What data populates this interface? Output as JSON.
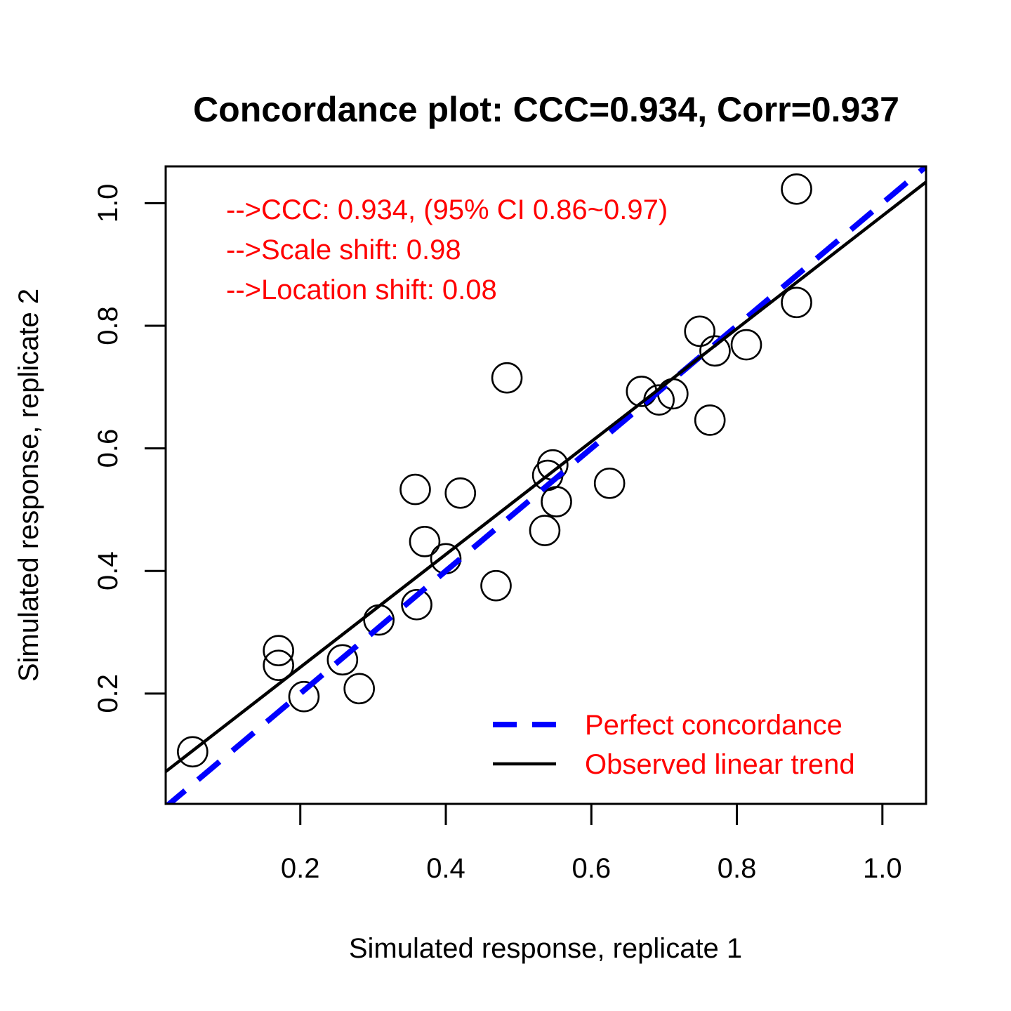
{
  "chart_data": {
    "type": "scatter",
    "title": "Concordance plot: CCC=0.934, Corr=0.937",
    "xlabel": "Simulated response, replicate 1",
    "ylabel": "Simulated response, replicate 2",
    "xlim": [
      0.015,
      1.06
    ],
    "ylim": [
      0.02,
      1.06
    ],
    "x_ticks": [
      0.2,
      0.4,
      0.6,
      0.8,
      1.0
    ],
    "x_tick_labels": [
      "0.2",
      "0.4",
      "0.6",
      "0.8",
      "1.0"
    ],
    "y_ticks": [
      0.2,
      0.4,
      0.6,
      0.8,
      1.0
    ],
    "y_tick_labels": [
      "0.2",
      "0.4",
      "0.6",
      "0.8",
      "1.0"
    ],
    "grid": false,
    "points": [
      {
        "x": 0.052,
        "y": 0.105
      },
      {
        "x": 0.17,
        "y": 0.27
      },
      {
        "x": 0.17,
        "y": 0.246
      },
      {
        "x": 0.205,
        "y": 0.195
      },
      {
        "x": 0.258,
        "y": 0.255
      },
      {
        "x": 0.281,
        "y": 0.208
      },
      {
        "x": 0.308,
        "y": 0.32
      },
      {
        "x": 0.358,
        "y": 0.533
      },
      {
        "x": 0.36,
        "y": 0.345
      },
      {
        "x": 0.371,
        "y": 0.448
      },
      {
        "x": 0.4,
        "y": 0.42
      },
      {
        "x": 0.42,
        "y": 0.527
      },
      {
        "x": 0.469,
        "y": 0.376
      },
      {
        "x": 0.484,
        "y": 0.715
      },
      {
        "x": 0.536,
        "y": 0.466
      },
      {
        "x": 0.54,
        "y": 0.556
      },
      {
        "x": 0.547,
        "y": 0.573
      },
      {
        "x": 0.552,
        "y": 0.513
      },
      {
        "x": 0.625,
        "y": 0.543
      },
      {
        "x": 0.669,
        "y": 0.693
      },
      {
        "x": 0.693,
        "y": 0.679
      },
      {
        "x": 0.712,
        "y": 0.689
      },
      {
        "x": 0.749,
        "y": 0.791
      },
      {
        "x": 0.763,
        "y": 0.646
      },
      {
        "x": 0.77,
        "y": 0.759
      },
      {
        "x": 0.813,
        "y": 0.769
      },
      {
        "x": 0.882,
        "y": 0.838
      },
      {
        "x": 0.882,
        "y": 1.023
      }
    ],
    "lines": [
      {
        "name": "Perfect concordance",
        "color": "#0000ff",
        "dash": true,
        "intercept": 0.0,
        "slope": 1.0
      },
      {
        "name": "Observed linear trend",
        "color": "#000000",
        "dash": false,
        "intercept": 0.0588,
        "slope": 0.9205
      }
    ],
    "annotations": [
      "-->CCC: 0.934, (95% CI 0.86~0.97)",
      "-->Scale shift: 0.98",
      "-->Location shift: 0.08"
    ],
    "annotation_color": "#ff0000",
    "legend": {
      "placement": "bottom-right",
      "text_color": "#ff0000",
      "entries": [
        "Perfect concordance",
        "Observed linear trend"
      ]
    }
  }
}
